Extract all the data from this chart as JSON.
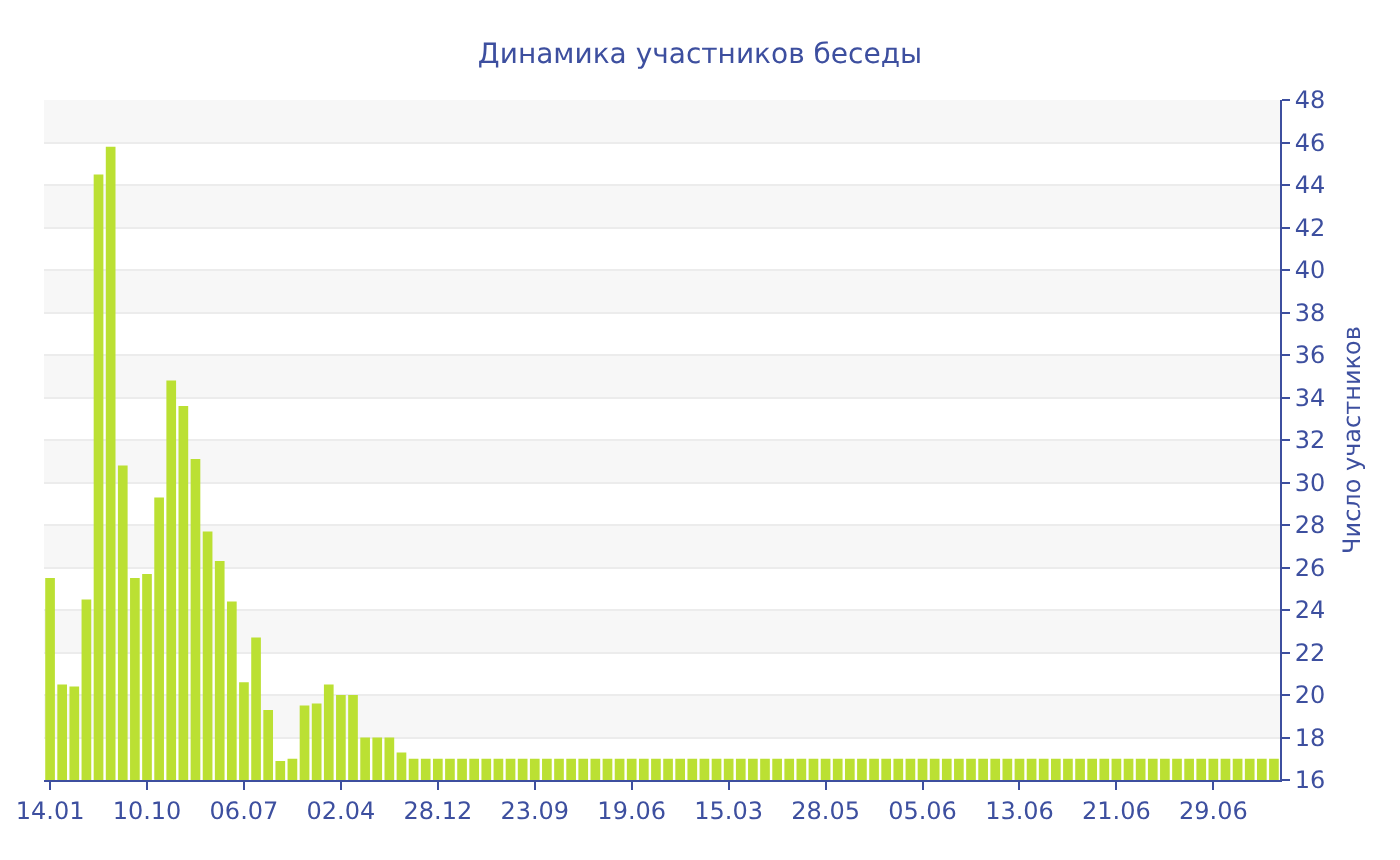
{
  "chart_data": {
    "type": "bar",
    "title": "Динамика участников беседы",
    "ylabel": "Число участников",
    "categories": [
      "14.01",
      null,
      null,
      null,
      null,
      null,
      null,
      null,
      "10.10",
      null,
      null,
      null,
      null,
      null,
      null,
      null,
      "06.07",
      null,
      null,
      null,
      null,
      null,
      null,
      null,
      "02.04",
      null,
      null,
      null,
      null,
      null,
      null,
      null,
      "28.12",
      null,
      null,
      null,
      null,
      null,
      null,
      null,
      "23.09",
      null,
      null,
      null,
      null,
      null,
      null,
      null,
      "19.06",
      null,
      null,
      null,
      null,
      null,
      null,
      null,
      "15.03",
      null,
      null,
      null,
      null,
      null,
      null,
      null,
      "28.05",
      null,
      null,
      null,
      null,
      null,
      null,
      null,
      "05.06",
      null,
      null,
      null,
      null,
      null,
      null,
      null,
      "13.06",
      null,
      null,
      null,
      null,
      null,
      null,
      null,
      "21.06",
      null,
      null,
      null,
      null,
      null,
      null,
      null,
      "29.06",
      null,
      null,
      null,
      null,
      null
    ],
    "values": [
      25.5,
      20.5,
      20.4,
      24.5,
      44.5,
      45.8,
      30.8,
      25.5,
      25.7,
      29.3,
      34.8,
      33.6,
      31.1,
      27.7,
      26.3,
      24.4,
      20.6,
      22.7,
      19.3,
      16.9,
      17,
      19.5,
      19.6,
      20.5,
      20,
      20,
      18,
      18,
      18,
      17.3,
      17,
      17,
      17,
      17,
      17,
      17,
      17,
      17,
      17,
      17,
      17,
      17,
      17,
      17,
      17,
      17,
      17,
      17,
      17,
      17,
      17,
      17,
      17,
      17,
      17,
      17,
      17,
      17,
      17,
      17,
      17,
      17,
      17,
      17,
      17,
      17,
      17,
      17,
      17,
      17,
      17,
      17,
      17,
      17,
      17,
      17,
      17,
      17,
      17,
      17,
      17,
      17,
      17,
      17,
      17,
      17,
      17,
      17,
      17,
      17,
      17,
      17,
      17,
      17,
      17,
      17,
      17,
      17,
      17,
      17,
      17,
      17
    ],
    "color": "#bbe033",
    "ylim": [
      16,
      48
    ],
    "yticks": [
      16,
      18,
      20,
      22,
      24,
      26,
      28,
      30,
      32,
      34,
      36,
      38,
      40,
      42,
      44,
      46,
      48
    ],
    "grid": true
  }
}
